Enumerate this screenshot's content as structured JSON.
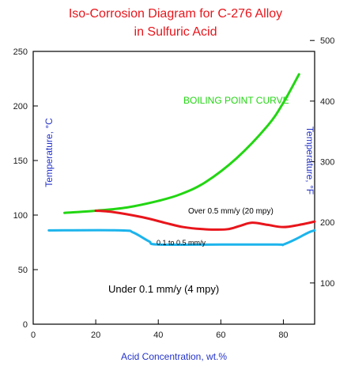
{
  "chart_data": {
    "type": "line",
    "title_line1": "Iso-Corrosion Diagram for C-276 Alloy",
    "title_line2": "in Sulfuric Acid",
    "xlabel": "Acid Concentration, wt.%",
    "ylabel_left": "Temperature, °C",
    "ylabel_right": "Temperature, °F",
    "xlim": [
      0,
      90
    ],
    "ylim": [
      0,
      250
    ],
    "x_ticks": [
      0,
      20,
      40,
      60,
      80
    ],
    "y_ticks_left": [
      0,
      50,
      100,
      150,
      200,
      250
    ],
    "y_ticks_right": [
      100,
      200,
      300,
      400,
      500
    ],
    "colors": {
      "boiling": "#22d612",
      "red": "#e8151b",
      "blue": "#1cb4ec",
      "axis_label": "#2433c8",
      "title": "#e8151b"
    },
    "series": [
      {
        "key": "boiling",
        "color": "#22d612",
        "points": [
          [
            10,
            102
          ],
          [
            20,
            104
          ],
          [
            30,
            107
          ],
          [
            40,
            113
          ],
          [
            47,
            119
          ],
          [
            55,
            130
          ],
          [
            65,
            152
          ],
          [
            75,
            182
          ],
          [
            80,
            203
          ],
          [
            85,
            229
          ]
        ]
      },
      {
        "key": "red",
        "color": "#e8151b",
        "points": [
          [
            20,
            104
          ],
          [
            25,
            103
          ],
          [
            35,
            98
          ],
          [
            42,
            93
          ],
          [
            48,
            89
          ],
          [
            55,
            87
          ],
          [
            62,
            87
          ],
          [
            66,
            90
          ],
          [
            70,
            93
          ],
          [
            75,
            91
          ],
          [
            80,
            89
          ],
          [
            85,
            91
          ],
          [
            90,
            94
          ]
        ]
      },
      {
        "key": "blue",
        "color": "#1cb4ec",
        "points": [
          [
            5,
            86
          ],
          [
            28,
            86
          ],
          [
            32,
            84
          ],
          [
            37,
            76
          ],
          [
            40,
            73
          ],
          [
            60,
            73
          ],
          [
            78,
            73
          ],
          [
            80,
            73
          ],
          [
            84,
            78
          ],
          [
            88,
            84
          ],
          [
            90,
            86
          ]
        ]
      }
    ],
    "annotations": {
      "boiling_label": "BOILING POINT CURVE",
      "over_label": "Over 0.5 mm/y (20 mpy)",
      "mid_label": "0.1 to 0.5 mm/y",
      "under_label": "Under 0.1 mm/y (4 mpy)"
    }
  }
}
